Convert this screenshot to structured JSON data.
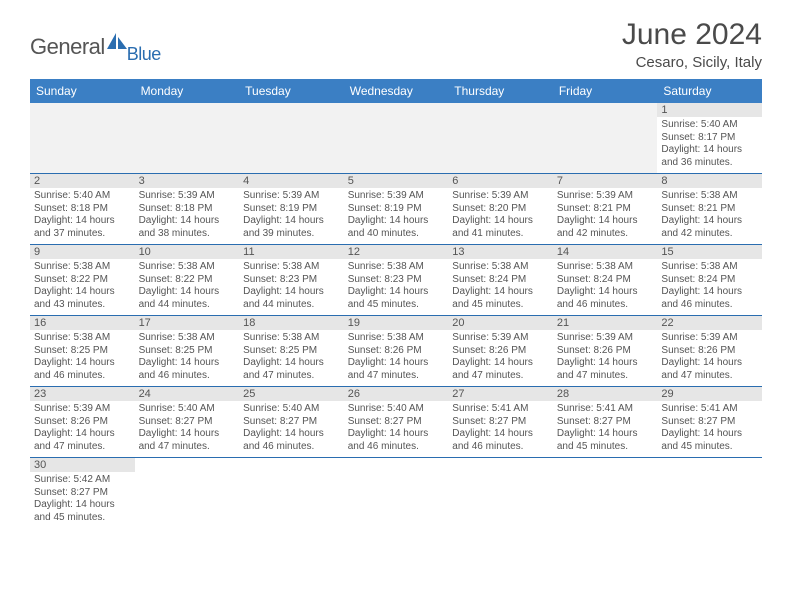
{
  "logo": {
    "text1": "General",
    "text2": "Blue"
  },
  "title": "June 2024",
  "location": "Cesaro, Sicily, Italy",
  "colors": {
    "header_bg": "#3b7fc4",
    "header_text": "#ffffff",
    "border": "#2a6db0",
    "daynum_bg": "#e6e6e6",
    "empty_bg": "#f2f2f2",
    "text": "#555555",
    "logo_blue": "#2a6db0"
  },
  "days_of_week": [
    "Sunday",
    "Monday",
    "Tuesday",
    "Wednesday",
    "Thursday",
    "Friday",
    "Saturday"
  ],
  "weeks": [
    [
      {
        "n": "",
        "sunrise": "",
        "sunset": "",
        "day1": "",
        "day2": ""
      },
      {
        "n": "",
        "sunrise": "",
        "sunset": "",
        "day1": "",
        "day2": ""
      },
      {
        "n": "",
        "sunrise": "",
        "sunset": "",
        "day1": "",
        "day2": ""
      },
      {
        "n": "",
        "sunrise": "",
        "sunset": "",
        "day1": "",
        "day2": ""
      },
      {
        "n": "",
        "sunrise": "",
        "sunset": "",
        "day1": "",
        "day2": ""
      },
      {
        "n": "",
        "sunrise": "",
        "sunset": "",
        "day1": "",
        "day2": ""
      },
      {
        "n": "1",
        "sunrise": "Sunrise: 5:40 AM",
        "sunset": "Sunset: 8:17 PM",
        "day1": "Daylight: 14 hours",
        "day2": "and 36 minutes."
      }
    ],
    [
      {
        "n": "2",
        "sunrise": "Sunrise: 5:40 AM",
        "sunset": "Sunset: 8:18 PM",
        "day1": "Daylight: 14 hours",
        "day2": "and 37 minutes."
      },
      {
        "n": "3",
        "sunrise": "Sunrise: 5:39 AM",
        "sunset": "Sunset: 8:18 PM",
        "day1": "Daylight: 14 hours",
        "day2": "and 38 minutes."
      },
      {
        "n": "4",
        "sunrise": "Sunrise: 5:39 AM",
        "sunset": "Sunset: 8:19 PM",
        "day1": "Daylight: 14 hours",
        "day2": "and 39 minutes."
      },
      {
        "n": "5",
        "sunrise": "Sunrise: 5:39 AM",
        "sunset": "Sunset: 8:19 PM",
        "day1": "Daylight: 14 hours",
        "day2": "and 40 minutes."
      },
      {
        "n": "6",
        "sunrise": "Sunrise: 5:39 AM",
        "sunset": "Sunset: 8:20 PM",
        "day1": "Daylight: 14 hours",
        "day2": "and 41 minutes."
      },
      {
        "n": "7",
        "sunrise": "Sunrise: 5:39 AM",
        "sunset": "Sunset: 8:21 PM",
        "day1": "Daylight: 14 hours",
        "day2": "and 42 minutes."
      },
      {
        "n": "8",
        "sunrise": "Sunrise: 5:38 AM",
        "sunset": "Sunset: 8:21 PM",
        "day1": "Daylight: 14 hours",
        "day2": "and 42 minutes."
      }
    ],
    [
      {
        "n": "9",
        "sunrise": "Sunrise: 5:38 AM",
        "sunset": "Sunset: 8:22 PM",
        "day1": "Daylight: 14 hours",
        "day2": "and 43 minutes."
      },
      {
        "n": "10",
        "sunrise": "Sunrise: 5:38 AM",
        "sunset": "Sunset: 8:22 PM",
        "day1": "Daylight: 14 hours",
        "day2": "and 44 minutes."
      },
      {
        "n": "11",
        "sunrise": "Sunrise: 5:38 AM",
        "sunset": "Sunset: 8:23 PM",
        "day1": "Daylight: 14 hours",
        "day2": "and 44 minutes."
      },
      {
        "n": "12",
        "sunrise": "Sunrise: 5:38 AM",
        "sunset": "Sunset: 8:23 PM",
        "day1": "Daylight: 14 hours",
        "day2": "and 45 minutes."
      },
      {
        "n": "13",
        "sunrise": "Sunrise: 5:38 AM",
        "sunset": "Sunset: 8:24 PM",
        "day1": "Daylight: 14 hours",
        "day2": "and 45 minutes."
      },
      {
        "n": "14",
        "sunrise": "Sunrise: 5:38 AM",
        "sunset": "Sunset: 8:24 PM",
        "day1": "Daylight: 14 hours",
        "day2": "and 46 minutes."
      },
      {
        "n": "15",
        "sunrise": "Sunrise: 5:38 AM",
        "sunset": "Sunset: 8:24 PM",
        "day1": "Daylight: 14 hours",
        "day2": "and 46 minutes."
      }
    ],
    [
      {
        "n": "16",
        "sunrise": "Sunrise: 5:38 AM",
        "sunset": "Sunset: 8:25 PM",
        "day1": "Daylight: 14 hours",
        "day2": "and 46 minutes."
      },
      {
        "n": "17",
        "sunrise": "Sunrise: 5:38 AM",
        "sunset": "Sunset: 8:25 PM",
        "day1": "Daylight: 14 hours",
        "day2": "and 46 minutes."
      },
      {
        "n": "18",
        "sunrise": "Sunrise: 5:38 AM",
        "sunset": "Sunset: 8:25 PM",
        "day1": "Daylight: 14 hours",
        "day2": "and 47 minutes."
      },
      {
        "n": "19",
        "sunrise": "Sunrise: 5:38 AM",
        "sunset": "Sunset: 8:26 PM",
        "day1": "Daylight: 14 hours",
        "day2": "and 47 minutes."
      },
      {
        "n": "20",
        "sunrise": "Sunrise: 5:39 AM",
        "sunset": "Sunset: 8:26 PM",
        "day1": "Daylight: 14 hours",
        "day2": "and 47 minutes."
      },
      {
        "n": "21",
        "sunrise": "Sunrise: 5:39 AM",
        "sunset": "Sunset: 8:26 PM",
        "day1": "Daylight: 14 hours",
        "day2": "and 47 minutes."
      },
      {
        "n": "22",
        "sunrise": "Sunrise: 5:39 AM",
        "sunset": "Sunset: 8:26 PM",
        "day1": "Daylight: 14 hours",
        "day2": "and 47 minutes."
      }
    ],
    [
      {
        "n": "23",
        "sunrise": "Sunrise: 5:39 AM",
        "sunset": "Sunset: 8:26 PM",
        "day1": "Daylight: 14 hours",
        "day2": "and 47 minutes."
      },
      {
        "n": "24",
        "sunrise": "Sunrise: 5:40 AM",
        "sunset": "Sunset: 8:27 PM",
        "day1": "Daylight: 14 hours",
        "day2": "and 47 minutes."
      },
      {
        "n": "25",
        "sunrise": "Sunrise: 5:40 AM",
        "sunset": "Sunset: 8:27 PM",
        "day1": "Daylight: 14 hours",
        "day2": "and 46 minutes."
      },
      {
        "n": "26",
        "sunrise": "Sunrise: 5:40 AM",
        "sunset": "Sunset: 8:27 PM",
        "day1": "Daylight: 14 hours",
        "day2": "and 46 minutes."
      },
      {
        "n": "27",
        "sunrise": "Sunrise: 5:41 AM",
        "sunset": "Sunset: 8:27 PM",
        "day1": "Daylight: 14 hours",
        "day2": "and 46 minutes."
      },
      {
        "n": "28",
        "sunrise": "Sunrise: 5:41 AM",
        "sunset": "Sunset: 8:27 PM",
        "day1": "Daylight: 14 hours",
        "day2": "and 45 minutes."
      },
      {
        "n": "29",
        "sunrise": "Sunrise: 5:41 AM",
        "sunset": "Sunset: 8:27 PM",
        "day1": "Daylight: 14 hours",
        "day2": "and 45 minutes."
      }
    ],
    [
      {
        "n": "30",
        "sunrise": "Sunrise: 5:42 AM",
        "sunset": "Sunset: 8:27 PM",
        "day1": "Daylight: 14 hours",
        "day2": "and 45 minutes."
      },
      {
        "n": "",
        "sunrise": "",
        "sunset": "",
        "day1": "",
        "day2": ""
      },
      {
        "n": "",
        "sunrise": "",
        "sunset": "",
        "day1": "",
        "day2": ""
      },
      {
        "n": "",
        "sunrise": "",
        "sunset": "",
        "day1": "",
        "day2": ""
      },
      {
        "n": "",
        "sunrise": "",
        "sunset": "",
        "day1": "",
        "day2": ""
      },
      {
        "n": "",
        "sunrise": "",
        "sunset": "",
        "day1": "",
        "day2": ""
      },
      {
        "n": "",
        "sunrise": "",
        "sunset": "",
        "day1": "",
        "day2": ""
      }
    ]
  ]
}
